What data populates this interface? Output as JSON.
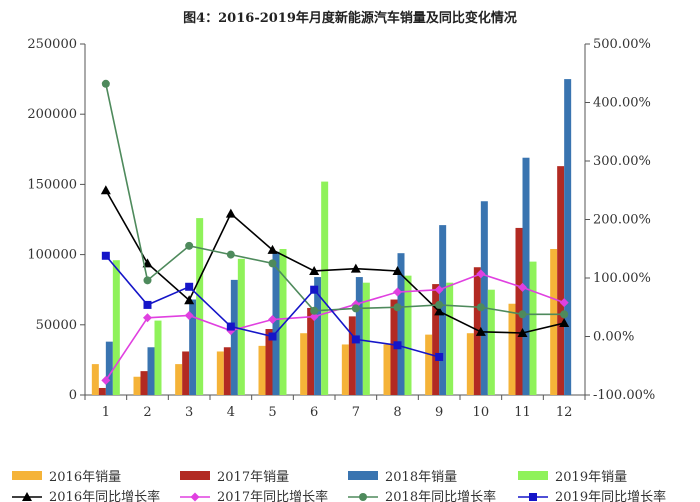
{
  "chart_data": {
    "type": "bar",
    "title": "图4：2016-2019年月度新能源汽车销量及同比变化情况",
    "categories": [
      "1",
      "2",
      "3",
      "4",
      "5",
      "6",
      "7",
      "8",
      "9",
      "10",
      "11",
      "12"
    ],
    "y_left": {
      "min": 0,
      "max": 250000,
      "step": 50000,
      "ticks": [
        "0",
        "50000",
        "100000",
        "150000",
        "200000",
        "250000"
      ]
    },
    "y_right": {
      "min": -100,
      "max": 500,
      "step": 100,
      "ticks": [
        "-100.00%",
        "0.00%",
        "100.00%",
        "200.00%",
        "300.00%",
        "400.00%",
        "500.00%"
      ]
    },
    "bar_series": [
      {
        "name": "2016年销量",
        "color": "#F5B338",
        "values": [
          22000,
          13000,
          22000,
          31000,
          35000,
          44000,
          36000,
          36000,
          43000,
          44000,
          65000,
          104000
        ]
      },
      {
        "name": "2017年销量",
        "color": "#B22A22",
        "values": [
          5000,
          17000,
          31000,
          34000,
          47000,
          62000,
          56000,
          68000,
          79000,
          91000,
          119000,
          163000
        ]
      },
      {
        "name": "2018年销量",
        "color": "#3974B0",
        "values": [
          38000,
          34000,
          68000,
          82000,
          102000,
          84000,
          84000,
          101000,
          121000,
          138000,
          169000,
          225000
        ]
      },
      {
        "name": "2019年销量",
        "color": "#8FF25A",
        "values": [
          96000,
          53000,
          126000,
          97000,
          104000,
          152000,
          80000,
          85000,
          80000,
          75000,
          95000,
          0
        ]
      }
    ],
    "line_series": [
      {
        "name": "2016年同比增长率",
        "color": "#000000",
        "marker": "triangle",
        "values": [
          250,
          125,
          62,
          210,
          148,
          112,
          116,
          112,
          43,
          8,
          6,
          23
        ]
      },
      {
        "name": "2017年同比增长率",
        "color": "#E040E0",
        "marker": "diamond",
        "values": [
          -75,
          32,
          36,
          10,
          29,
          34,
          55,
          76,
          80,
          107,
          84,
          58
        ]
      },
      {
        "name": "2018年同比增长率",
        "color": "#4E8A5C",
        "marker": "circle",
        "values": [
          432,
          96,
          155,
          140,
          125,
          44,
          48,
          50,
          54,
          50,
          38,
          38
        ]
      },
      {
        "name": "2019年同比增长率",
        "color": "#1515C8",
        "marker": "square",
        "values": [
          138,
          54,
          85,
          17,
          0,
          80,
          -5,
          -15,
          -35
        ]
      }
    ]
  }
}
